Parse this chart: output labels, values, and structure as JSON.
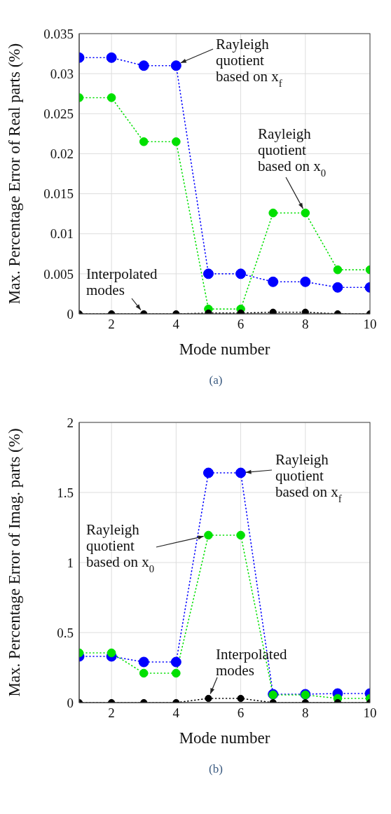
{
  "chart_data": [
    {
      "type": "line",
      "xlabel": "Mode number",
      "ylabel": "Max. Percentage Error of Real parts (%)",
      "x": [
        1,
        2,
        3,
        4,
        5,
        6,
        7,
        8,
        9,
        10
      ],
      "xlim": [
        1,
        10
      ],
      "xticks": [
        2,
        4,
        6,
        8,
        10
      ],
      "ylim": [
        0,
        0.035
      ],
      "yticks": [
        0,
        0.005,
        0.01,
        0.015,
        0.02,
        0.025,
        0.03,
        0.035
      ],
      "grid": true,
      "marker": "circle",
      "line_style": "dotted",
      "series": [
        {
          "color": "#0000ff",
          "values": [
            0.032,
            0.032,
            0.031,
            0.031,
            0.005,
            0.005,
            0.004,
            0.004,
            0.0033,
            0.0033
          ]
        },
        {
          "color": "#00e000",
          "values": [
            0.027,
            0.027,
            0.0215,
            0.0215,
            0.0006,
            0.0006,
            0.0126,
            0.0126,
            0.0055,
            0.0055
          ]
        },
        {
          "color": "#000000",
          "values": [
            0,
            0,
            0,
            0,
            0.0001,
            0.0001,
            0.0002,
            0.0002,
            0,
            0
          ]
        }
      ],
      "annotations": [
        {
          "text": "Rayleigh\nquotient\nbased on x$_{f}$",
          "x": 4,
          "y": 0.0311
        },
        {
          "text": "Rayleigh\nquotient\nbased on x$_{0}$",
          "x": 8,
          "y": 0.0126
        },
        {
          "text": "Interpolated\nmodes",
          "x": 3,
          "y": 0
        },
        "(a)"
      ]
    },
    {
      "type": "line",
      "xlabel": "Mode number",
      "ylabel": "Max. Percentage Error of Imag. parts (%)",
      "x": [
        1,
        2,
        3,
        4,
        5,
        6,
        7,
        8,
        9,
        10
      ],
      "xlim": [
        1,
        10
      ],
      "xticks": [
        2,
        4,
        6,
        8,
        10
      ],
      "ylim": [
        0,
        2
      ],
      "yticks": [
        0,
        0.5,
        1,
        1.5,
        2
      ],
      "grid": true,
      "marker": "circle",
      "line_style": "dotted",
      "series": [
        {
          "color": "#0000ff",
          "values": [
            0.33,
            0.33,
            0.29,
            0.29,
            1.64,
            1.64,
            0.06,
            0.06,
            0.065,
            0.065
          ]
        },
        {
          "color": "#00e000",
          "values": [
            0.355,
            0.355,
            0.21,
            0.21,
            1.195,
            1.195,
            0.055,
            0.055,
            0.03,
            0.03
          ]
        },
        {
          "color": "#000000",
          "values": [
            0,
            0,
            0,
            0,
            0.03,
            0.03,
            0,
            0,
            0,
            0
          ]
        }
      ],
      "annotations": [
        {
          "text": "Rayleigh\nquotient\nbased on x$_{f}$",
          "x": 6,
          "y": 1.64
        },
        {
          "text": "Rayleigh\nquotient\nbased on x$_{0}$",
          "x": 5,
          "y": 1.195
        },
        {
          "text": "Interpolated\nmodes",
          "x": 5,
          "y": 0.03
        },
        "(b)"
      ]
    }
  ]
}
